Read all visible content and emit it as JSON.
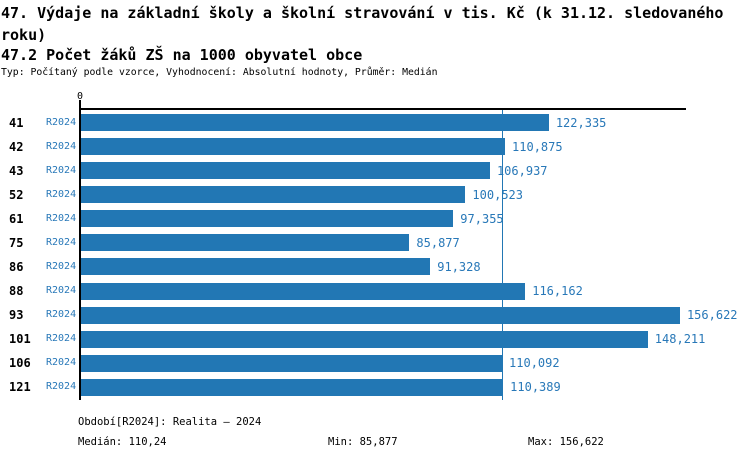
{
  "chart_data": {
    "type": "bar",
    "orientation": "horizontal",
    "title": "47. Výdaje na základní školy a školní stravování v tis. Kč (k 31.12. sledovaného roku)",
    "subtitle": "47.2 Počet žáků ZŠ na 1000 obyvatel obce",
    "meta": "Typ: Počítaný podle vzorce, Vyhodnocení: Absolutní hodnoty, Průměr: Medián",
    "categories": [
      "41",
      "42",
      "43",
      "52",
      "61",
      "75",
      "86",
      "88",
      "93",
      "101",
      "106",
      "121"
    ],
    "series_label": "R2024",
    "values": [
      122.335,
      110.875,
      106.937,
      100.523,
      97.355,
      85.877,
      91.328,
      116.162,
      156.622,
      148.211,
      110.092,
      110.389
    ],
    "value_labels": [
      "122,335",
      "110,875",
      "106,937",
      "100,523",
      "97,355",
      "85,877",
      "91,328",
      "116,162",
      "156,622",
      "148,211",
      "110,092",
      "110,389"
    ],
    "x_tick_labels": [
      "0"
    ],
    "xlim": [
      0,
      158.2
    ],
    "median": 110.24,
    "grid": false,
    "legend_position": "none",
    "bar_color": "#2277b4",
    "accent_text_color": "#2878b8",
    "median_line_color": "#2277b4",
    "axis_color": "#000000"
  },
  "footer": {
    "period": "Období[R2024]: Realita – 2024",
    "median": "Medián: 110,24",
    "min": "Min: 85,877",
    "max": "Max: 156,622"
  }
}
